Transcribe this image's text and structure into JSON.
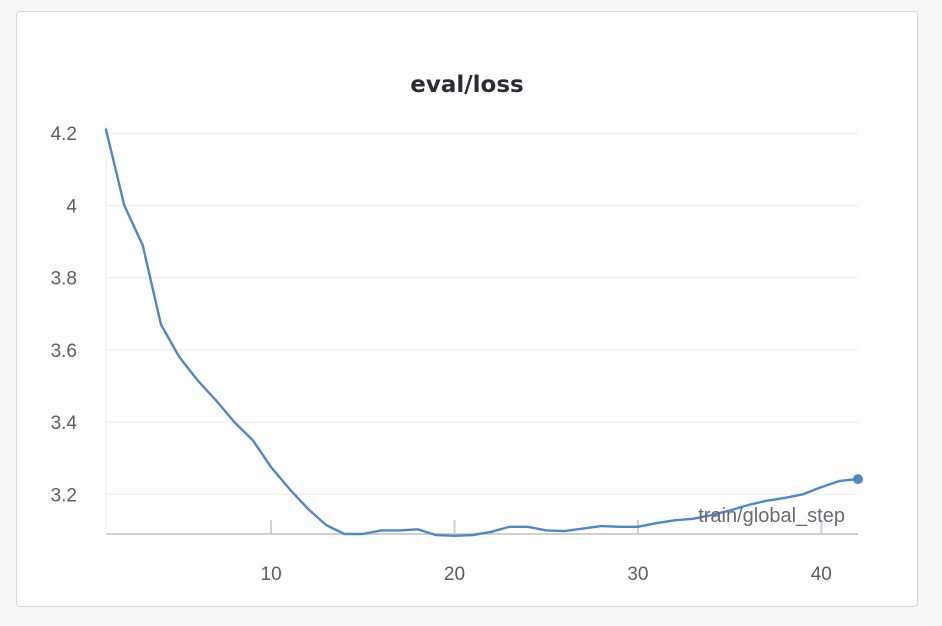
{
  "colors": {
    "line": "#4f88c9",
    "grid": "#ebebee",
    "axis": "#cfcfd4",
    "text": "#5c5c66"
  },
  "chart_data": {
    "type": "line",
    "title": "eval/loss",
    "xlabel": "train/global_step",
    "ylabel": "",
    "xlim": [
      1,
      42
    ],
    "ylim": [
      3.09,
      4.22
    ],
    "xticks": [
      10,
      20,
      30,
      40
    ],
    "yticks": [
      3.2,
      3.4,
      3.6,
      3.8,
      4,
      4.2
    ],
    "ytick_labels": [
      "3.2",
      "3.4",
      "3.6",
      "3.8",
      "4",
      "4.2"
    ],
    "xtick_labels": [
      "10",
      "20",
      "30",
      "40"
    ],
    "grid": true,
    "series": [
      {
        "x": [
          1,
          2,
          3,
          4,
          5,
          6,
          7,
          8,
          9,
          10,
          11,
          12,
          13,
          14,
          15,
          16,
          17,
          18,
          19,
          20,
          21,
          22,
          23,
          24,
          25,
          26,
          27,
          28,
          29,
          30,
          31,
          32,
          33,
          34,
          35,
          36,
          37,
          38,
          39,
          40,
          41,
          42
        ],
        "y": [
          4.21,
          4.0,
          3.89,
          3.67,
          3.58,
          3.515,
          3.46,
          3.4,
          3.35,
          3.275,
          3.215,
          3.16,
          3.115,
          3.09,
          3.09,
          3.1,
          3.1,
          3.103,
          3.087,
          3.085,
          3.087,
          3.096,
          3.11,
          3.11,
          3.1,
          3.098,
          3.105,
          3.112,
          3.11,
          3.11,
          3.12,
          3.128,
          3.132,
          3.142,
          3.155,
          3.17,
          3.182,
          3.19,
          3.2,
          3.22,
          3.237,
          3.242
        ]
      }
    ]
  }
}
